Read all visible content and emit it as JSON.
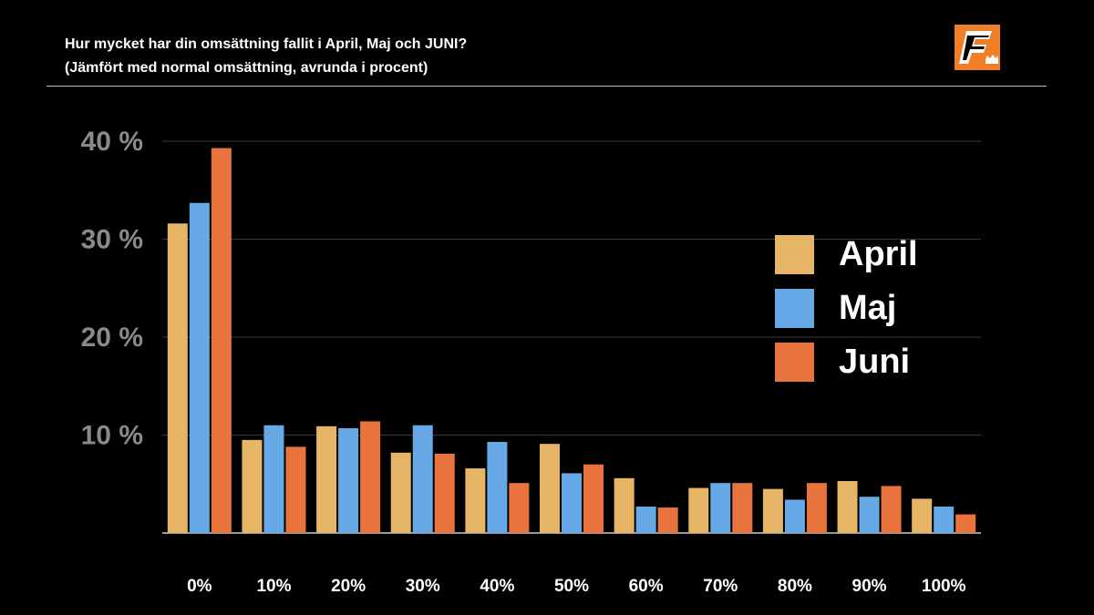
{
  "header": {
    "title": "Hur mycket har din omsättning fallit i April, Maj och JUNI?",
    "subtitle": "(Jämfört med normal omsättning, avrunda i procent)"
  },
  "logo": {
    "icon": "f-crown-logo-icon",
    "letter": "F",
    "background": "#F07E26"
  },
  "colors": {
    "background": "#000000",
    "grid": "#3a3a3a",
    "axis": "#cccccc",
    "ytick": "#8a8a8a",
    "text": "#ffffff"
  },
  "chart_data": {
    "type": "bar",
    "categories": [
      "0%",
      "10%",
      "20%",
      "30%",
      "40%",
      "50%",
      "60%",
      "70%",
      "80%",
      "90%",
      "100%"
    ],
    "series": [
      {
        "name": "April",
        "color": "#E6B566",
        "values": [
          31.6,
          9.5,
          10.9,
          8.2,
          6.6,
          9.1,
          5.6,
          4.6,
          4.5,
          5.3,
          3.5
        ]
      },
      {
        "name": "Maj",
        "color": "#66A9E6",
        "values": [
          33.7,
          11.0,
          10.7,
          11.0,
          9.3,
          6.1,
          2.7,
          5.1,
          3.4,
          3.7,
          2.7
        ]
      },
      {
        "name": "Juni",
        "color": "#E8733D",
        "values": [
          39.3,
          8.8,
          11.4,
          8.1,
          5.1,
          7.0,
          2.6,
          5.1,
          5.1,
          4.8,
          1.9
        ]
      }
    ],
    "yticks": [
      "10 %",
      "20 %",
      "30 %",
      "40 %"
    ],
    "ytick_values": [
      10,
      20,
      30,
      40
    ],
    "ylim": [
      0,
      40
    ],
    "grid": true,
    "legend": "right",
    "xlabel": "",
    "ylabel": ""
  }
}
